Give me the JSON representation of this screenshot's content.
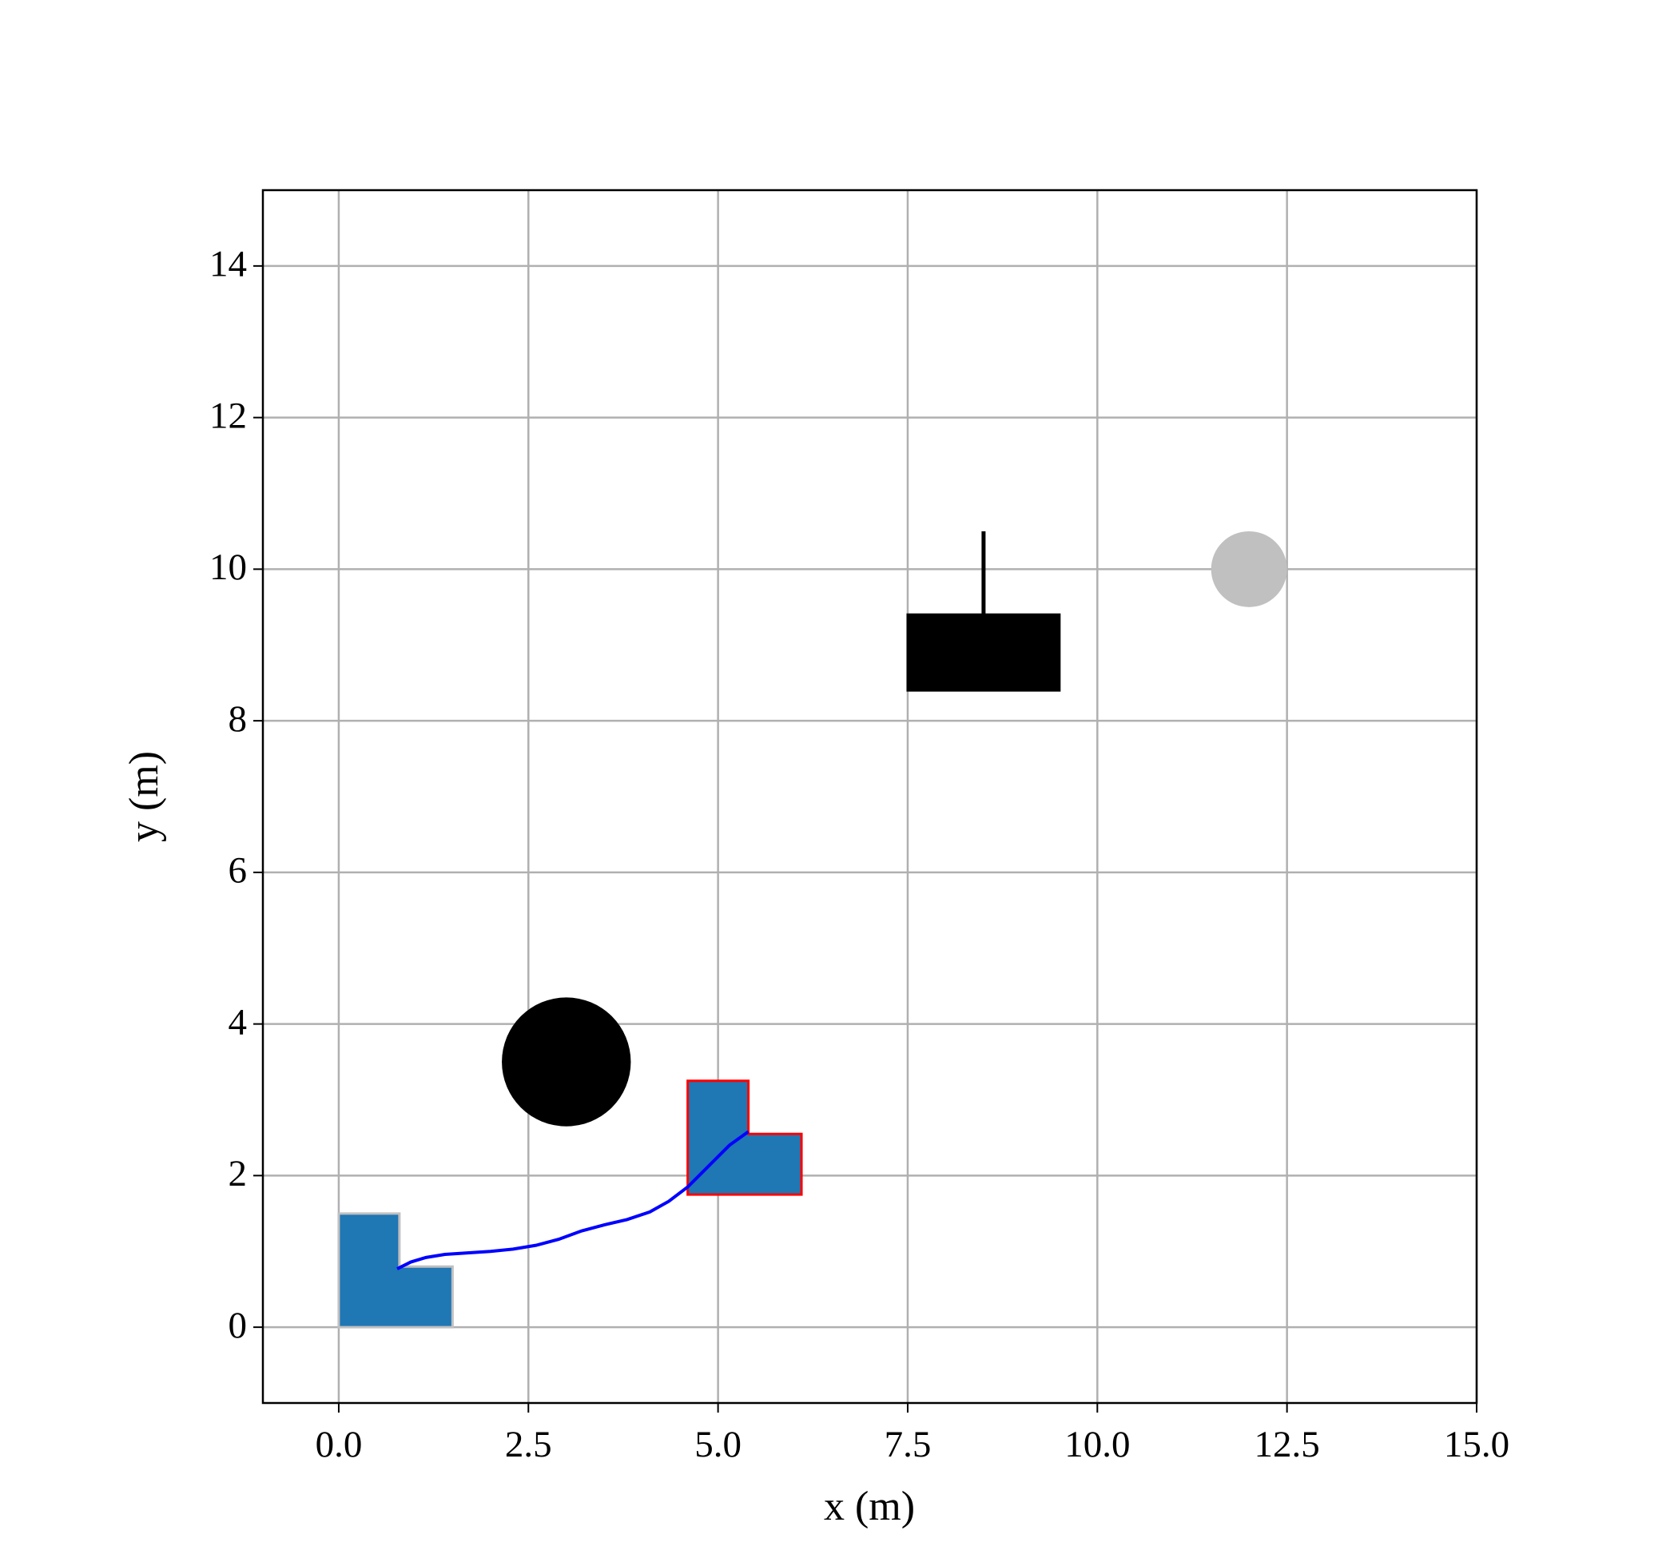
{
  "chart_data": {
    "type": "line",
    "xlabel": "x (m)",
    "ylabel": "y (m)",
    "xlim": [
      -1,
      15
    ],
    "ylim": [
      -1,
      15
    ],
    "xticks": [
      {
        "value": 0,
        "label": "0.0"
      },
      2.5,
      {
        "value": 5,
        "label": "5.0"
      },
      7.5,
      {
        "value": 10,
        "label": "10.0"
      },
      12.5,
      {
        "value": 15,
        "label": "15.0"
      }
    ],
    "yticks": [
      0,
      2,
      4,
      6,
      8,
      10,
      12,
      14
    ],
    "grid": true,
    "series": [
      {
        "color": "#0000ff",
        "x": [
          0.77,
          0.95,
          1.15,
          1.4,
          1.7,
          2.0,
          2.3,
          2.6,
          2.9,
          3.2,
          3.5,
          3.8,
          4.1,
          4.35,
          4.6,
          4.9,
          5.15,
          5.4
        ],
        "values": [
          0.77,
          0.86,
          0.92,
          0.96,
          0.98,
          1.0,
          1.03,
          1.08,
          1.16,
          1.27,
          1.35,
          1.42,
          1.52,
          1.66,
          1.85,
          2.15,
          2.4,
          2.58
        ]
      }
    ],
    "shapes": [
      {
        "kind": "polygon",
        "color": "#1f77b4",
        "edgecolor": "#c0c0c0",
        "x": [
          0,
          1.5,
          1.5,
          0.8,
          0.8,
          0
        ],
        "y": [
          0,
          0,
          0.8,
          0.8,
          1.5,
          1.5
        ]
      },
      {
        "kind": "polygon",
        "color": "#1f77b4",
        "edgecolor": "#ff0000",
        "x": [
          4.6,
          6.1,
          6.1,
          5.4,
          5.4,
          4.6
        ],
        "y": [
          1.75,
          1.75,
          2.55,
          2.55,
          3.25,
          3.25
        ]
      },
      {
        "kind": "circle",
        "color": "#000000",
        "center": [
          3,
          3.5
        ],
        "radius": 0.85
      },
      {
        "kind": "circle",
        "color": "#c0c0c0",
        "center": [
          12,
          10
        ],
        "radius": 0.5
      },
      {
        "kind": "polygon",
        "color": "#000000",
        "edgecolor": "#000000",
        "x": [
          7.5,
          9.5,
          9.5,
          7.5
        ],
        "y": [
          8.4,
          8.4,
          9.4,
          9.4
        ]
      },
      {
        "kind": "segment",
        "color": "#000000",
        "x": [
          8.5,
          8.5
        ],
        "y": [
          9.4,
          10.5
        ]
      }
    ]
  }
}
